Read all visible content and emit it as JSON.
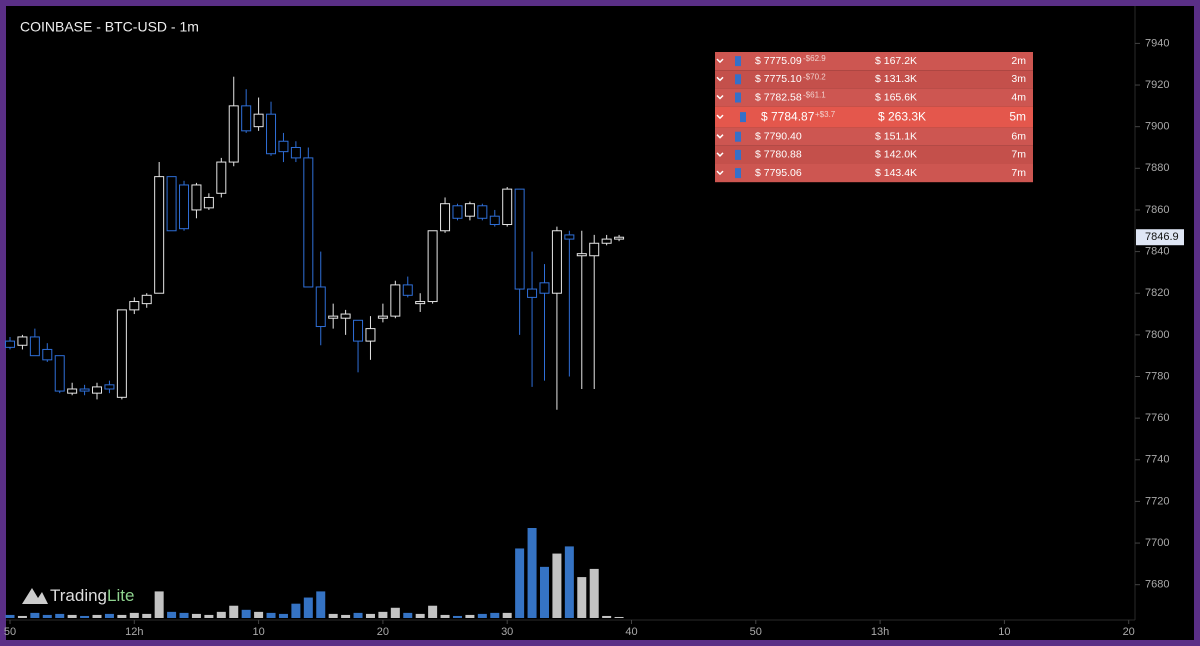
{
  "chart_data": {
    "type": "candlestick",
    "title": "COINBASE - BTC-USD - 1m",
    "x": [
      0,
      1,
      2,
      3,
      4,
      5,
      6,
      7,
      8,
      9,
      10,
      11,
      12,
      13,
      14,
      15,
      16,
      17,
      18,
      19,
      20,
      21,
      22,
      23,
      24,
      25,
      26,
      27,
      28,
      29,
      30,
      31,
      32,
      33,
      34,
      35,
      36,
      37,
      38,
      39,
      40,
      41,
      42,
      43,
      44,
      45,
      46,
      47,
      48,
      49
    ],
    "open": [
      7797,
      7795,
      7799,
      7793,
      7790,
      7772,
      7774,
      7772,
      7776,
      7770,
      7812,
      7815,
      7820,
      7876,
      7872,
      7860,
      7861,
      7868,
      7883,
      7910,
      7900,
      7906,
      7893,
      7890,
      7885,
      7823,
      7808,
      7808,
      7807,
      7797,
      7808,
      7809,
      7824,
      7815,
      7816,
      7850,
      7862,
      7857,
      7862,
      7857,
      7853,
      7870,
      7822,
      7825,
      7820,
      7848,
      7838,
      7838,
      7844,
      7846
    ],
    "high": [
      7799,
      7800,
      7803,
      7796,
      7790,
      7777,
      7776,
      7777,
      7778,
      7812,
      7818,
      7820,
      7883,
      7876,
      7874,
      7873,
      7868,
      7885,
      7924,
      7918,
      7914,
      7912,
      7897,
      7893,
      7890,
      7840,
      7815,
      7812,
      7807,
      7809,
      7815,
      7826,
      7828,
      7820,
      7850,
      7866,
      7863,
      7864,
      7863,
      7860,
      7871,
      7870,
      7840,
      7834,
      7852,
      7850,
      7850,
      7848,
      7848,
      7848
    ],
    "low": [
      7793,
      7793,
      7790,
      7787,
      7772,
      7771,
      7771,
      7769,
      7772,
      7769,
      7810,
      7813,
      7820,
      7850,
      7850,
      7856,
      7860,
      7866,
      7881,
      7897,
      7898,
      7886,
      7883,
      7883,
      7823,
      7795,
      7803,
      7800,
      7782,
      7788,
      7806,
      7808,
      7818,
      7811,
      7815,
      7849,
      7855,
      7855,
      7855,
      7852,
      7852,
      7800,
      7775,
      7778,
      7764,
      7780,
      7774,
      7774,
      7843,
      7845
    ],
    "close": [
      7794,
      7799,
      7790,
      7788,
      7773,
      7774,
      7773,
      7775,
      7774,
      7812,
      7816,
      7819,
      7876,
      7850,
      7851,
      7872,
      7866,
      7883,
      7910,
      7898,
      7906,
      7887,
      7888,
      7885,
      7823,
      7804,
      7809,
      7810,
      7797,
      7803,
      7809,
      7824,
      7819,
      7816,
      7850,
      7863,
      7856,
      7863,
      7856,
      7853,
      7870,
      7822,
      7818,
      7820,
      7850,
      7846,
      7839,
      7844,
      7846,
      7846.9
    ],
    "volume": [
      3,
      2,
      5,
      3,
      4,
      3,
      2,
      3,
      4,
      3,
      5,
      4,
      26,
      6,
      5,
      4,
      3,
      6,
      12,
      8,
      6,
      5,
      4,
      14,
      20,
      26,
      4,
      3,
      5,
      4,
      6,
      10,
      5,
      4,
      12,
      3,
      2,
      3,
      4,
      5,
      5,
      68,
      88,
      50,
      63,
      70,
      40,
      48,
      2,
      1
    ],
    "up_color": "#e6e6e6",
    "down_color": "#2f6fd8",
    "xlim": [
      -0.3,
      90.5
    ],
    "xticks": [
      {
        "value": 0,
        "label": "50"
      },
      {
        "value": 10,
        "label": "12h"
      },
      {
        "value": 20,
        "label": "10"
      },
      {
        "value": 30,
        "label": "20"
      },
      {
        "value": 40,
        "label": "30"
      },
      {
        "value": 50,
        "label": "40"
      },
      {
        "value": 60,
        "label": "50"
      },
      {
        "value": 70,
        "label": "13h"
      },
      {
        "value": 80,
        "label": "10"
      },
      {
        "value": 90,
        "label": "20"
      }
    ],
    "ylim": [
      7664,
      7957
    ],
    "yticks": [
      7680,
      7700,
      7720,
      7740,
      7760,
      7780,
      7800,
      7820,
      7840,
      7860,
      7880,
      7900,
      7920,
      7940
    ]
  },
  "brand": [
    "Trading",
    "Lite"
  ],
  "order_flow": [
    {
      "price": "$ 7775.09",
      "change": "-$62.9",
      "size": "$ 167.2K",
      "age": "2m"
    },
    {
      "price": "$ 7775.10",
      "change": "-$70.2",
      "size": "$ 131.3K",
      "age": "3m"
    },
    {
      "price": "$ 7782.58",
      "change": "-$61.1",
      "size": "$ 165.6K",
      "age": "4m"
    },
    {
      "price": "$ 7784.87",
      "change": "+$3.7",
      "size": "$ 263.3K",
      "age": "5m"
    },
    {
      "price": "$ 7790.40",
      "size": "$ 151.1K",
      "age": "6m"
    },
    {
      "price": "$ 7780.88",
      "size": "$ 142.0K",
      "age": "7m"
    },
    {
      "price": "$ 7795.06",
      "size": "$ 143.4K",
      "age": "7m"
    }
  ]
}
